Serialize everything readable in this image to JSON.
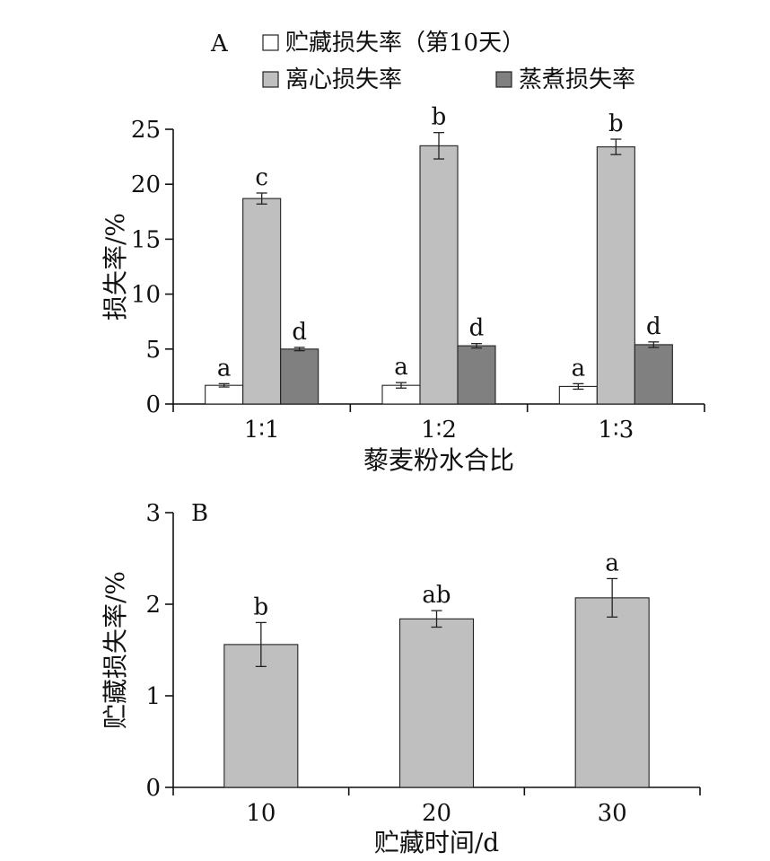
{
  "chart_data": [
    {
      "panel_label": "A",
      "type": "bar",
      "legend": "top",
      "xlabel": "藜麦粉水合比",
      "ylabel": "损失率/%",
      "ylim": [
        0,
        25
      ],
      "yticks": [
        "0",
        "5",
        "10",
        "15",
        "20",
        "25"
      ],
      "categories": [
        "1∶1",
        "1∶2",
        "1∶3"
      ],
      "series": [
        {
          "name": "贮藏损失率（第10天）",
          "color": "#ffffff",
          "values": [
            1.7,
            1.7,
            1.6
          ],
          "errors": [
            0.15,
            0.25,
            0.25
          ],
          "letters": [
            "a",
            "a",
            "a"
          ]
        },
        {
          "name": "离心损失率",
          "color": "#bfbfbf",
          "values": [
            18.7,
            23.5,
            23.4
          ],
          "errors": [
            0.5,
            1.2,
            0.7
          ],
          "letters": [
            "c",
            "b",
            "b"
          ]
        },
        {
          "name": "蒸煮损失率",
          "color": "#808080",
          "values": [
            5.0,
            5.3,
            5.4
          ],
          "errors": [
            0.15,
            0.2,
            0.25
          ],
          "letters": [
            "d",
            "d",
            "d"
          ]
        }
      ]
    },
    {
      "panel_label": "B",
      "type": "bar",
      "xlabel": "贮藏时间/d",
      "ylabel": "贮藏损失率/%",
      "ylim": [
        0,
        3
      ],
      "yticks": [
        "0",
        "1",
        "2",
        "3"
      ],
      "categories": [
        "10",
        "20",
        "30"
      ],
      "series": [
        {
          "color": "#bfbfbf",
          "values": [
            1.56,
            1.84,
            2.07
          ],
          "errors": [
            0.24,
            0.09,
            0.21
          ],
          "letters": [
            "b",
            "ab",
            "a"
          ]
        }
      ]
    }
  ]
}
